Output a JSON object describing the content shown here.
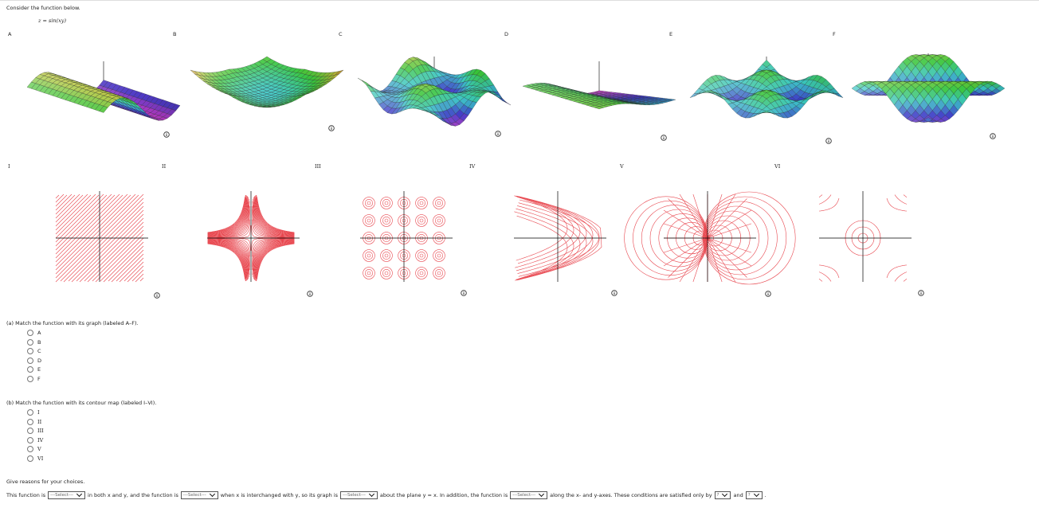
{
  "prompt": "Consider the function below.",
  "function": "z = sin(xy)",
  "graphs": {
    "labels": [
      "A",
      "B",
      "C",
      "D",
      "E",
      "F"
    ]
  },
  "contours": {
    "labels": [
      "I",
      "II",
      "III",
      "IV",
      "V",
      "VI"
    ]
  },
  "part_a": {
    "question": "(a) Match the function with its graph (labeled A–F).",
    "options": [
      "A",
      "B",
      "C",
      "D",
      "E",
      "F"
    ]
  },
  "part_b": {
    "question": "(b) Match the function with its contour map (labeled I–VI).",
    "options": [
      "I",
      "II",
      "III",
      "IV",
      "V",
      "VI"
    ]
  },
  "reasons": {
    "heading": "Give reasons for your choices.",
    "text": [
      "This function is",
      "in both x and y, and the function is",
      "when x is interchanged with y, so its graph is",
      "about the plane y = x. In addition, the function is",
      "along the x- and y-axes. These conditions are satisfied only by",
      "and",
      "."
    ],
    "selects": [
      "---Select---",
      "---Select---",
      "---Select---",
      "---Select---",
      "?",
      "?"
    ]
  }
}
